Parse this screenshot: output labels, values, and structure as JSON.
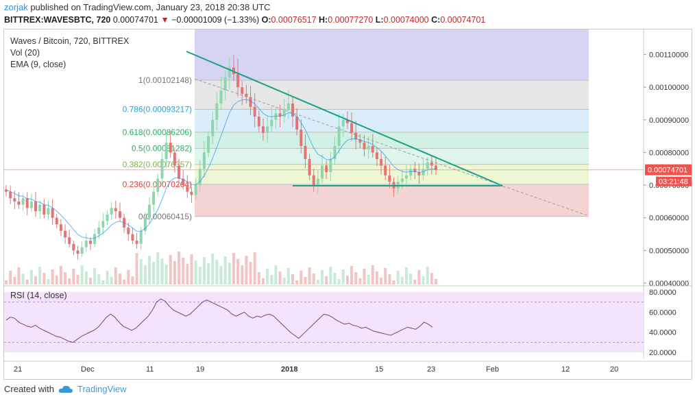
{
  "header": {
    "author": "zorjak",
    "published_text": "published on TradingView.com, January 23, 2018 20:38 UTC",
    "symbol": "BITTREX:WAVESBTC, 720",
    "last": "0.00074701",
    "arrow": "▼",
    "change": "−0.00001009 (−1.33%)",
    "o_label": "O:",
    "o": "0.00076517",
    "h_label": "H:",
    "h": "0.00077270",
    "l_label": "L:",
    "l": "0.00074000",
    "c_label": "C:",
    "c": "0.00074701"
  },
  "legend": {
    "title": "Waves / Bitcoin, 720, BITTREX",
    "vol": "Vol (20)",
    "ema": "EMA (9, close)",
    "rsi": "RSI (14, close)"
  },
  "footer": {
    "created_with": "Created with",
    "brand": "TradingView"
  },
  "colors": {
    "up": "#8fd5ae",
    "down": "#e57373",
    "trend": "#1aa085",
    "rsi_line": "#7e3f87",
    "rsi_band": "#f3e3fb",
    "fib_top": "#d6d4f3",
    "fib_1": "#e6e6e6",
    "fib_786": "#d9eef8",
    "fib_618": "#d3f0e5",
    "fib_5": "#ddf5ea",
    "fib_382": "#ecf7d4",
    "fib_236": "#f6ecd0",
    "fib_0": "#f4d3d3",
    "price_badge": "#ef5350"
  },
  "chart_data": {
    "type": "candlestick",
    "symbol": "WAVESBTC",
    "timeframe": "720",
    "exchange": "BITTREX",
    "price_axis": {
      "ticks": [
        "0.00110000",
        "0.00100000",
        "0.00090000",
        "0.00080000",
        "0.00070000",
        "0.00060000",
        "0.00050000",
        "0.00040000"
      ],
      "range": [
        0.0004,
        0.00116
      ]
    },
    "time_axis": [
      "21",
      "Dec",
      "11",
      "19",
      "2018",
      "15",
      "23",
      "Feb",
      "12",
      "20"
    ],
    "current_price": "0.00074701",
    "countdown": "03:21:48",
    "fibonacci": [
      {
        "ratio": "1",
        "label": "1(0.00102148)",
        "value": 0.00102148
      },
      {
        "ratio": "0.786",
        "label": "0.786(0.00093217)",
        "value": 0.00093217
      },
      {
        "ratio": "0.618",
        "label": "0.618(0.00086206)",
        "value": 0.00086206
      },
      {
        "ratio": "0.5",
        "label": "0.5(0.00081282)",
        "value": 0.00081282
      },
      {
        "ratio": "0.382",
        "label": "0.382(0.00076357)",
        "value": 0.00076357
      },
      {
        "ratio": "0.236",
        "label": "0.236(0.00070264)",
        "value": 0.00070264
      },
      {
        "ratio": "0",
        "label": "0(0.00060415)",
        "value": 0.00060415
      }
    ],
    "close_series_approx": [
      0.00068,
      0.00066,
      0.00065,
      0.00064,
      0.00066,
      0.00063,
      0.00065,
      0.00062,
      0.00064,
      0.00061,
      0.00063,
      0.0006,
      0.00058,
      0.00056,
      0.00054,
      0.00052,
      0.0005,
      0.00049,
      0.00051,
      0.00053,
      0.00052,
      0.00055,
      0.00057,
      0.00059,
      0.00061,
      0.00063,
      0.00062,
      0.0006,
      0.00057,
      0.00055,
      0.00053,
      0.00052,
      0.00056,
      0.0006,
      0.00064,
      0.00068,
      0.00072,
      0.00078,
      0.00083,
      0.0008,
      0.00076,
      0.00072,
      0.0007,
      0.00068,
      0.00067,
      0.0007,
      0.00075,
      0.0008,
      0.00085,
      0.0009,
      0.00095,
      0.00099,
      0.00103,
      0.00106,
      0.00104,
      0.001,
      0.00098,
      0.00097,
      0.00094,
      0.00091,
      0.00088,
      0.00086,
      0.00088,
      0.0009,
      0.00092,
      0.00091,
      0.00093,
      0.00095,
      0.00091,
      0.00087,
      0.00082,
      0.00078,
      0.00073,
      0.0007,
      0.00072,
      0.00076,
      0.00074,
      0.00078,
      0.00082,
      0.00088,
      0.0009,
      0.00089,
      0.00086,
      0.00084,
      0.00083,
      0.00081,
      0.00082,
      0.0008,
      0.00078,
      0.00076,
      0.00073,
      0.00071,
      0.00069,
      0.00071,
      0.00072,
      0.00073,
      0.00075,
      0.00074,
      0.00073,
      0.00075,
      0.00077,
      0.00076,
      0.00074701
    ],
    "volume_axis_note": "",
    "rsi": {
      "ticks": [
        "80.0000",
        "60.0000",
        "40.0000",
        "20.0000"
      ],
      "bands": [
        30,
        70
      ],
      "series_approx": [
        52,
        55,
        54,
        50,
        48,
        46,
        45,
        47,
        44,
        42,
        40,
        38,
        36,
        35,
        33,
        31,
        30,
        33,
        36,
        38,
        40,
        42,
        45,
        50,
        55,
        58,
        55,
        50,
        46,
        44,
        42,
        44,
        48,
        52,
        56,
        62,
        70,
        73,
        71,
        66,
        62,
        60,
        58,
        56,
        58,
        62,
        66,
        70,
        72,
        70,
        68,
        66,
        64,
        62,
        58,
        56,
        58,
        60,
        56,
        54,
        56,
        55,
        57,
        58,
        56,
        52,
        48,
        44,
        40,
        37,
        34,
        38,
        42,
        46,
        50,
        54,
        58,
        57,
        55,
        52,
        50,
        48,
        49,
        47,
        46,
        44,
        45,
        43,
        41,
        40,
        39,
        38,
        37,
        39,
        41,
        43,
        45,
        44,
        43,
        46,
        50,
        48,
        45
      ]
    }
  }
}
